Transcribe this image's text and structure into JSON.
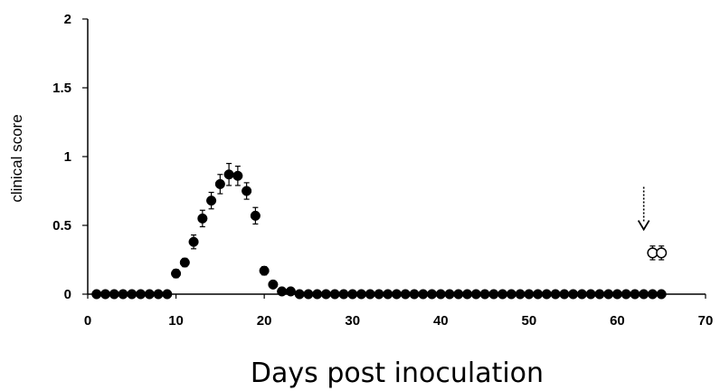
{
  "chart_data": {
    "type": "scatter",
    "title": "",
    "xlabel": "Days post inoculation",
    "ylabel": "clinical score",
    "xlim": [
      0,
      70
    ],
    "ylim": [
      0,
      2
    ],
    "x_ticks": [
      "0",
      "10",
      "20",
      "30",
      "40",
      "50",
      "60",
      "70"
    ],
    "y_ticks": [
      "0",
      "0.5",
      "1",
      "1.5",
      "2"
    ],
    "grid": false,
    "legend": "none",
    "series": [
      {
        "marker": "filled-circle",
        "color": "#000000",
        "points": [
          {
            "x": 1,
            "y": 0
          },
          {
            "x": 2,
            "y": 0
          },
          {
            "x": 3,
            "y": 0
          },
          {
            "x": 4,
            "y": 0
          },
          {
            "x": 5,
            "y": 0
          },
          {
            "x": 6,
            "y": 0
          },
          {
            "x": 7,
            "y": 0
          },
          {
            "x": 8,
            "y": 0
          },
          {
            "x": 9,
            "y": 0
          },
          {
            "x": 10,
            "y": 0.15,
            "err": 0.03
          },
          {
            "x": 11,
            "y": 0.23,
            "err": 0.03
          },
          {
            "x": 12,
            "y": 0.38,
            "err": 0.05
          },
          {
            "x": 13,
            "y": 0.55,
            "err": 0.06
          },
          {
            "x": 14,
            "y": 0.68,
            "err": 0.06
          },
          {
            "x": 15,
            "y": 0.8,
            "err": 0.07
          },
          {
            "x": 16,
            "y": 0.87,
            "err": 0.08
          },
          {
            "x": 17,
            "y": 0.86,
            "err": 0.07
          },
          {
            "x": 18,
            "y": 0.75,
            "err": 0.06
          },
          {
            "x": 19,
            "y": 0.57,
            "err": 0.06
          },
          {
            "x": 20,
            "y": 0.17,
            "err": 0.03
          },
          {
            "x": 21,
            "y": 0.07,
            "err": 0.02
          },
          {
            "x": 22,
            "y": 0.02
          },
          {
            "x": 23,
            "y": 0.02
          },
          {
            "x": 24,
            "y": 0
          },
          {
            "x": 25,
            "y": 0
          },
          {
            "x": 26,
            "y": 0
          },
          {
            "x": 27,
            "y": 0
          },
          {
            "x": 28,
            "y": 0
          },
          {
            "x": 29,
            "y": 0
          },
          {
            "x": 30,
            "y": 0
          },
          {
            "x": 31,
            "y": 0
          },
          {
            "x": 32,
            "y": 0
          },
          {
            "x": 33,
            "y": 0
          },
          {
            "x": 34,
            "y": 0
          },
          {
            "x": 35,
            "y": 0
          },
          {
            "x": 36,
            "y": 0
          },
          {
            "x": 37,
            "y": 0
          },
          {
            "x": 38,
            "y": 0
          },
          {
            "x": 39,
            "y": 0
          },
          {
            "x": 40,
            "y": 0
          },
          {
            "x": 41,
            "y": 0
          },
          {
            "x": 42,
            "y": 0
          },
          {
            "x": 43,
            "y": 0
          },
          {
            "x": 44,
            "y": 0
          },
          {
            "x": 45,
            "y": 0
          },
          {
            "x": 46,
            "y": 0
          },
          {
            "x": 47,
            "y": 0
          },
          {
            "x": 48,
            "y": 0
          },
          {
            "x": 49,
            "y": 0
          },
          {
            "x": 50,
            "y": 0
          },
          {
            "x": 51,
            "y": 0
          },
          {
            "x": 52,
            "y": 0
          },
          {
            "x": 53,
            "y": 0
          },
          {
            "x": 54,
            "y": 0
          },
          {
            "x": 55,
            "y": 0
          },
          {
            "x": 56,
            "y": 0
          },
          {
            "x": 57,
            "y": 0
          },
          {
            "x": 58,
            "y": 0
          },
          {
            "x": 59,
            "y": 0
          },
          {
            "x": 60,
            "y": 0
          },
          {
            "x": 61,
            "y": 0
          },
          {
            "x": 62,
            "y": 0
          },
          {
            "x": 63,
            "y": 0
          },
          {
            "x": 64,
            "y": 0
          },
          {
            "x": 65,
            "y": 0
          }
        ]
      },
      {
        "marker": "open-circle",
        "color": "#000000",
        "points": [
          {
            "x": 64,
            "y": 0.3,
            "err": 0.05
          },
          {
            "x": 65,
            "y": 0.3,
            "err": 0.05
          }
        ]
      }
    ],
    "annotations": [
      {
        "type": "dashed-arrow-down",
        "x": 63,
        "y_from": 0.78,
        "y_to": 0.47
      }
    ]
  }
}
